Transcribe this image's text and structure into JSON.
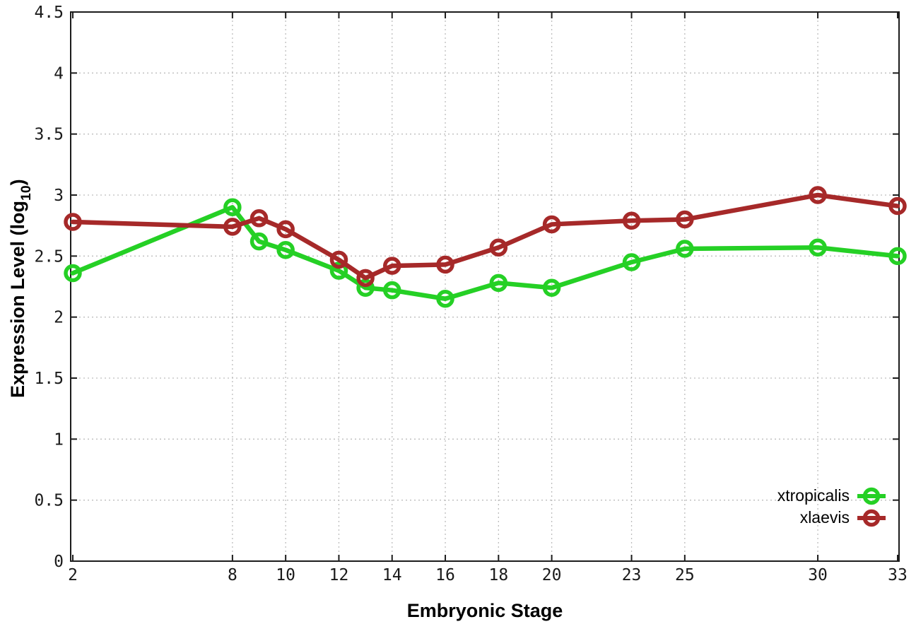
{
  "figure": {
    "background": "#ffffff",
    "border_color": "#1c1c1c",
    "grid_color": "#bdbdbd",
    "xlabel": "Embryonic Stage",
    "ylabel_prefix": "Expression Level (log",
    "ylabel_subscript": "10",
    "ylabel_suffix": ")"
  },
  "chart_data": {
    "type": "line",
    "title": "",
    "xlabel": "Embryonic Stage",
    "ylabel": "Expression Level (log10)",
    "x": [
      2,
      8,
      9,
      10,
      12,
      13,
      14,
      16,
      18,
      20,
      23,
      25,
      30,
      33
    ],
    "series": [
      {
        "name": "xtropicalis",
        "color": "#25d025",
        "values": [
          2.36,
          2.9,
          2.62,
          2.55,
          2.38,
          2.24,
          2.22,
          2.15,
          2.28,
          2.24,
          2.45,
          2.56,
          2.57,
          2.5
        ]
      },
      {
        "name": "xlaevis",
        "color": "#a62929",
        "values": [
          2.78,
          2.74,
          2.81,
          2.72,
          2.47,
          2.32,
          2.42,
          2.43,
          2.57,
          2.76,
          2.79,
          2.8,
          3.0,
          2.91
        ]
      }
    ],
    "xlim": [
      2,
      33
    ],
    "ylim": [
      0,
      4.5
    ],
    "xtick_values": [
      2,
      8,
      10,
      12,
      14,
      16,
      18,
      20,
      23,
      25,
      30,
      33
    ],
    "xtick_labels": [
      "2",
      "8",
      "10",
      "12",
      "14",
      "16",
      "18",
      "20",
      "23",
      "25",
      "30",
      "33"
    ],
    "ytick_values": [
      0,
      0.5,
      1,
      1.5,
      2,
      2.5,
      3,
      3.5,
      4,
      4.5
    ],
    "ytick_labels": [
      "0",
      "0.5",
      "1",
      "1.5",
      "2",
      "2.5",
      "3",
      "3.5",
      "4",
      "4.5"
    ],
    "grid": "dotted, at every labeled tick",
    "legend_position": "inside bottom-right",
    "marker": "open-circle"
  }
}
